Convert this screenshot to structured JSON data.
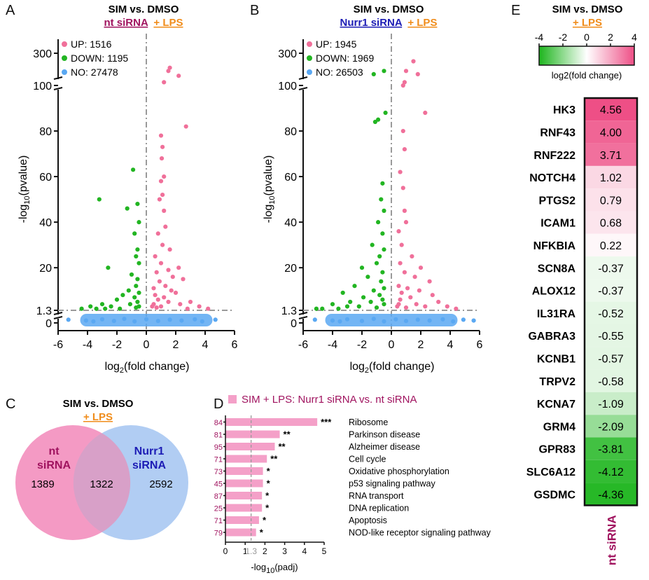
{
  "figure": {
    "letters": [
      "A",
      "B",
      "C",
      "D",
      "E"
    ],
    "colors": {
      "up": "#f0709a",
      "down": "#22b522",
      "no": "#5aa8f2",
      "nt": "#a0135f",
      "nurr1": "#1c1cb5",
      "lps": "#f08c1a",
      "bar": "#f4a0c8",
      "venn_nt": "#f49ac4",
      "venn_nurr1": "#a9c8f2",
      "venn_overlap": "#d8a0c8",
      "threshold_line": "#9a9a9a"
    }
  },
  "chart_data": [
    {
      "id": "A",
      "type": "scatter",
      "title": "SIM vs. DMSO",
      "subtitle_main": "nt siRNA",
      "subtitle_suffix": "+ LPS",
      "xlabel_pre": "log",
      "xlabel_sub": "2",
      "xlabel_post": "(fold change)",
      "ylabel_pre": "-log",
      "ylabel_sub": "10",
      "ylabel_post": "(pvalue)",
      "xlim": [
        -6,
        6
      ],
      "xticks": [
        "-6",
        "-4",
        "-2",
        "0",
        "2",
        "4",
        "6"
      ],
      "yticks_lower": [
        "0",
        "1.3",
        "20",
        "40",
        "60",
        "80",
        "100"
      ],
      "yticks_upper": [
        "300"
      ],
      "axis_break": [
        100,
        300
      ],
      "threshold_y": 1.3,
      "threshold_x": 0,
      "legend": [
        {
          "name": "UP: 1516"
        },
        {
          "name": "DOWN: 1195"
        },
        {
          "name": "NO: 27478"
        }
      ],
      "series": [
        {
          "name": "UP",
          "points": [
            [
              1.2,
              120
            ],
            [
              1.5,
              190
            ],
            [
              1.6,
              210
            ],
            [
              2.2,
              160
            ],
            [
              2.7,
              82
            ],
            [
              1.0,
              78
            ],
            [
              1.1,
              73
            ],
            [
              1.05,
              68
            ],
            [
              1.2,
              60
            ],
            [
              1.0,
              58
            ],
            [
              1.1,
              52
            ],
            [
              0.9,
              50
            ],
            [
              1.2,
              45
            ],
            [
              1.3,
              38
            ],
            [
              0.8,
              35
            ],
            [
              1.1,
              30
            ],
            [
              1.6,
              28
            ],
            [
              0.6,
              25
            ],
            [
              1.0,
              22
            ],
            [
              2.2,
              20
            ],
            [
              1.5,
              19
            ],
            [
              0.7,
              18
            ],
            [
              1.8,
              16
            ],
            [
              2.5,
              15
            ],
            [
              0.9,
              14
            ],
            [
              1.3,
              12
            ],
            [
              0.5,
              11
            ],
            [
              1.7,
              10
            ],
            [
              2.0,
              9
            ],
            [
              0.6,
              8
            ],
            [
              1.2,
              7
            ],
            [
              0.8,
              6
            ],
            [
              3.0,
              5
            ],
            [
              1.5,
              5
            ],
            [
              0.5,
              4
            ],
            [
              2.3,
              4
            ],
            [
              3.6,
              3
            ],
            [
              4.2,
              2
            ],
            [
              1.0,
              3
            ],
            [
              0.7,
              2.5
            ],
            [
              2.8,
              2
            ],
            [
              0.4,
              3
            ]
          ]
        },
        {
          "name": "DOWN",
          "points": [
            [
              -0.9,
              63
            ],
            [
              -3.2,
              50
            ],
            [
              -1.3,
              46
            ],
            [
              -0.6,
              48
            ],
            [
              -0.5,
              40
            ],
            [
              -0.8,
              35
            ],
            [
              -0.6,
              28
            ],
            [
              -0.7,
              25
            ],
            [
              -2.6,
              20
            ],
            [
              -0.5,
              22
            ],
            [
              -1.0,
              17
            ],
            [
              -0.6,
              15
            ],
            [
              -0.7,
              12
            ],
            [
              -1.2,
              10
            ],
            [
              -0.5,
              9
            ],
            [
              -1.6,
              8
            ],
            [
              -0.8,
              7
            ],
            [
              -2.0,
              6
            ],
            [
              -0.6,
              5
            ],
            [
              -3.0,
              4
            ],
            [
              -1.1,
              4
            ],
            [
              -3.8,
              3
            ],
            [
              -0.5,
              3
            ],
            [
              -2.4,
              3
            ],
            [
              -4.4,
              2
            ],
            [
              -1.8,
              2
            ],
            [
              -0.7,
              2.5
            ],
            [
              -3.4,
              2
            ],
            [
              -2.8,
              2
            ]
          ]
        },
        {
          "name": "NO",
          "points": [
            [
              -5.3,
              0.6
            ],
            [
              -4.1,
              0.8
            ],
            [
              -3.0,
              0.5
            ],
            [
              -2.2,
              0.9
            ],
            [
              -1.5,
              0.4
            ],
            [
              -0.8,
              1.0
            ],
            [
              0.0,
              0.5
            ],
            [
              0.8,
              0.9
            ],
            [
              1.6,
              0.6
            ],
            [
              2.4,
              0.8
            ],
            [
              3.3,
              0.5
            ],
            [
              4.7,
              0.6
            ],
            [
              -3.6,
              1.0
            ],
            [
              3.8,
              1.0
            ]
          ]
        }
      ]
    },
    {
      "id": "B",
      "type": "scatter",
      "title": "SIM vs. DMSO",
      "subtitle_main": "Nurr1 siRNA",
      "subtitle_suffix": "+ LPS",
      "xlabel_pre": "log",
      "xlabel_sub": "2",
      "xlabel_post": "(fold change)",
      "ylabel_pre": "-log",
      "ylabel_sub": "10",
      "ylabel_post": "(pvalue)",
      "xlim": [
        -6,
        6
      ],
      "xticks": [
        "-6",
        "-4",
        "-2",
        "0",
        "2",
        "4",
        "6"
      ],
      "yticks_lower": [
        "0",
        "1.3",
        "20",
        "40",
        "60",
        "80",
        "100"
      ],
      "yticks_upper": [
        "300"
      ],
      "axis_break": [
        100,
        300
      ],
      "threshold_y": 1.3,
      "threshold_x": 0,
      "legend": [
        {
          "name": "UP: 1945"
        },
        {
          "name": "DOWN: 1969"
        },
        {
          "name": "NO: 26503"
        }
      ],
      "series": [
        {
          "name": "UP",
          "points": [
            [
              1.5,
              250
            ],
            [
              1.0,
              190
            ],
            [
              1.8,
              170
            ],
            [
              0.9,
              120
            ],
            [
              0.8,
              100
            ],
            [
              2.3,
              88
            ],
            [
              0.8,
              80
            ],
            [
              0.9,
              72
            ],
            [
              0.6,
              62
            ],
            [
              0.8,
              55
            ],
            [
              0.9,
              45
            ],
            [
              1.0,
              40
            ],
            [
              0.5,
              36
            ],
            [
              0.7,
              30
            ],
            [
              1.4,
              25
            ],
            [
              0.6,
              22
            ],
            [
              2.0,
              20
            ],
            [
              0.9,
              18
            ],
            [
              1.6,
              16
            ],
            [
              2.6,
              14
            ],
            [
              0.5,
              12
            ],
            [
              1.1,
              11
            ],
            [
              1.9,
              10
            ],
            [
              0.7,
              9
            ],
            [
              2.8,
              8
            ],
            [
              1.3,
              7
            ],
            [
              0.6,
              6
            ],
            [
              3.2,
              5
            ],
            [
              1.7,
              4
            ],
            [
              0.5,
              4
            ],
            [
              3.8,
              3
            ],
            [
              4.4,
              2
            ],
            [
              2.3,
              3
            ],
            [
              1.0,
              2.5
            ],
            [
              0.4,
              3
            ]
          ]
        },
        {
          "name": "DOWN",
          "points": [
            [
              -1.2,
              170
            ],
            [
              -0.5,
              190
            ],
            [
              -0.9,
              85
            ],
            [
              -0.4,
              88
            ],
            [
              -1.1,
              84
            ],
            [
              -0.6,
              57
            ],
            [
              -0.7,
              50
            ],
            [
              -0.5,
              45
            ],
            [
              -0.9,
              40
            ],
            [
              -0.6,
              35
            ],
            [
              -1.3,
              30
            ],
            [
              -0.5,
              28
            ],
            [
              -0.8,
              25
            ],
            [
              -1.0,
              22
            ],
            [
              -2.0,
              20
            ],
            [
              -0.6,
              18
            ],
            [
              -1.6,
              16
            ],
            [
              -0.7,
              14
            ],
            [
              -2.5,
              12
            ],
            [
              -0.5,
              11
            ],
            [
              -1.2,
              10
            ],
            [
              -3.3,
              9
            ],
            [
              -0.8,
              8
            ],
            [
              -1.9,
              7
            ],
            [
              -0.6,
              6
            ],
            [
              -2.8,
              5
            ],
            [
              -1.4,
              5
            ],
            [
              -4.0,
              4
            ],
            [
              -0.5,
              4
            ],
            [
              -3.0,
              3
            ],
            [
              -4.7,
              2
            ],
            [
              -2.2,
              3
            ],
            [
              -5.1,
              2
            ],
            [
              -1.0,
              2.5
            ],
            [
              -3.6,
              2
            ]
          ]
        },
        {
          "name": "NO",
          "points": [
            [
              -5.2,
              0.6
            ],
            [
              -4.0,
              0.8
            ],
            [
              -3.0,
              0.5
            ],
            [
              -2.0,
              0.9
            ],
            [
              -1.2,
              0.4
            ],
            [
              -0.5,
              1.0
            ],
            [
              0.3,
              0.5
            ],
            [
              1.0,
              0.9
            ],
            [
              1.8,
              0.6
            ],
            [
              2.6,
              0.8
            ],
            [
              3.5,
              0.5
            ],
            [
              4.9,
              0.6
            ],
            [
              5.6,
              0.8
            ],
            [
              -3.5,
              1.0
            ],
            [
              4.2,
              1.0
            ]
          ]
        }
      ]
    },
    {
      "id": "C",
      "type": "venn",
      "title": "SIM vs. DMSO",
      "subtitle_suffix": "+ LPS",
      "sets": [
        {
          "name_line1": "nt",
          "name_line2": "siRNA",
          "only": 1389
        },
        {
          "name_line1": "Nurr1",
          "name_line2": "siRNA",
          "only": 2592
        }
      ],
      "overlap": 1322
    },
    {
      "id": "D",
      "type": "bar",
      "orientation": "horizontal",
      "legend": "SIM + LPS:  Nurr1 siRNA vs. nt siRNA",
      "xlabel_pre": "-log",
      "xlabel_sub": "10",
      "xlabel_post": "(padj)",
      "xlim": [
        0,
        5
      ],
      "xticks": [
        "0",
        "1",
        "2",
        "3",
        "4",
        "5"
      ],
      "threshold": 1.3,
      "threshold_label": "1.3",
      "categories": [
        "Ribosome",
        "Parkinson disease",
        "Alzheimer disease",
        "Cell cycle",
        "Oxidative phosphorylation",
        "p53 signaling pathway",
        "RNA transport",
        "DNA replication",
        "Apoptosis",
        "NOD-like receptor signaling pathway"
      ],
      "values": [
        4.65,
        2.75,
        2.5,
        2.1,
        1.9,
        1.9,
        1.85,
        1.85,
        1.7,
        1.55
      ],
      "gene_counts": [
        "84",
        "81",
        "95",
        "71",
        "73",
        "45",
        "87",
        "25",
        "71",
        "79"
      ],
      "significance": [
        "***",
        "**",
        "**",
        "**",
        "*",
        "*",
        "*",
        "*",
        "*",
        "*"
      ]
    },
    {
      "id": "E",
      "type": "heatmap",
      "title": "SIM vs. DMSO",
      "subtitle_suffix": "+ LPS",
      "colorbar_label": "log2(fold change)",
      "colorbar_ticks": [
        "-4",
        "-2",
        "0",
        "2",
        "4"
      ],
      "colorbar_range": [
        -4,
        4
      ],
      "column": "nt siRNA",
      "genes": [
        "HK3",
        "RNF43",
        "RNF222",
        "NOTCH4",
        "PTGS2",
        "ICAM1",
        "NFKBIA",
        "SCN8A",
        "ALOX12",
        "IL31RA",
        "GABRA3",
        "KCNB1",
        "TRPV2",
        "KCNA7",
        "GRM4",
        "GPR83",
        "SLC6A12",
        "GSDMC"
      ],
      "values": [
        "4.56",
        "4.00",
        "3.71",
        "1.02",
        "0.79",
        "0.68",
        "0.22",
        "-0.37",
        "-0.37",
        "-0.52",
        "-0.55",
        "-0.57",
        "-0.58",
        "-1.09",
        "-2.09",
        "-3.81",
        "-4.12",
        "-4.36"
      ]
    }
  ]
}
